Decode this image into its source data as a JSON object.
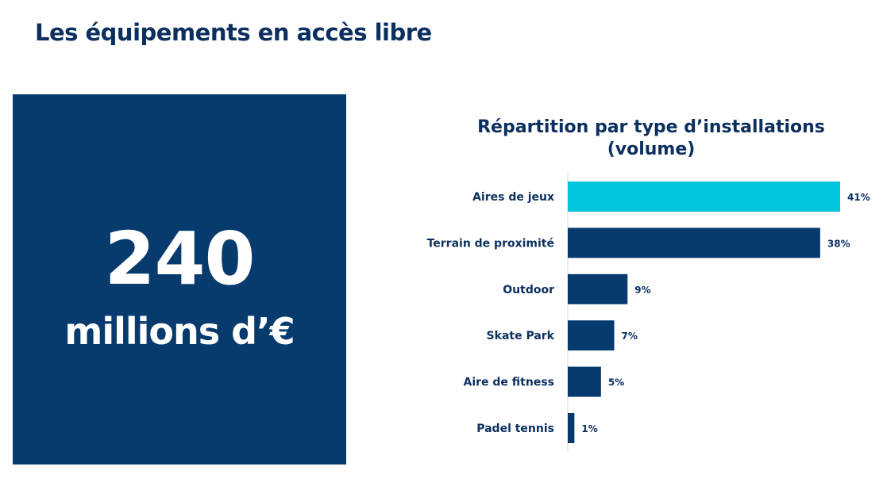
{
  "page": {
    "title": "Les équipements en accès libre"
  },
  "kpi": {
    "value": "240",
    "unit": "millions d’€"
  },
  "chart_data": {
    "type": "bar",
    "orientation": "horizontal",
    "title_line1": "Répartition par type d’installations",
    "title_line2": "(volume)",
    "categories": [
      "Aires de jeux",
      "Terrain de proximité",
      "Outdoor",
      "Skate Park",
      "Aire de fitness",
      "Padel tennis"
    ],
    "values": [
      41,
      38,
      9,
      7,
      5,
      1
    ],
    "value_labels": [
      "41%",
      "38%",
      "9%",
      "7%",
      "5%",
      "1%"
    ],
    "colors": [
      "#00c5dd",
      "#073b6e",
      "#073b6e",
      "#073b6e",
      "#073b6e",
      "#073b6e"
    ],
    "xlim": [
      0,
      41
    ],
    "grid": false
  }
}
